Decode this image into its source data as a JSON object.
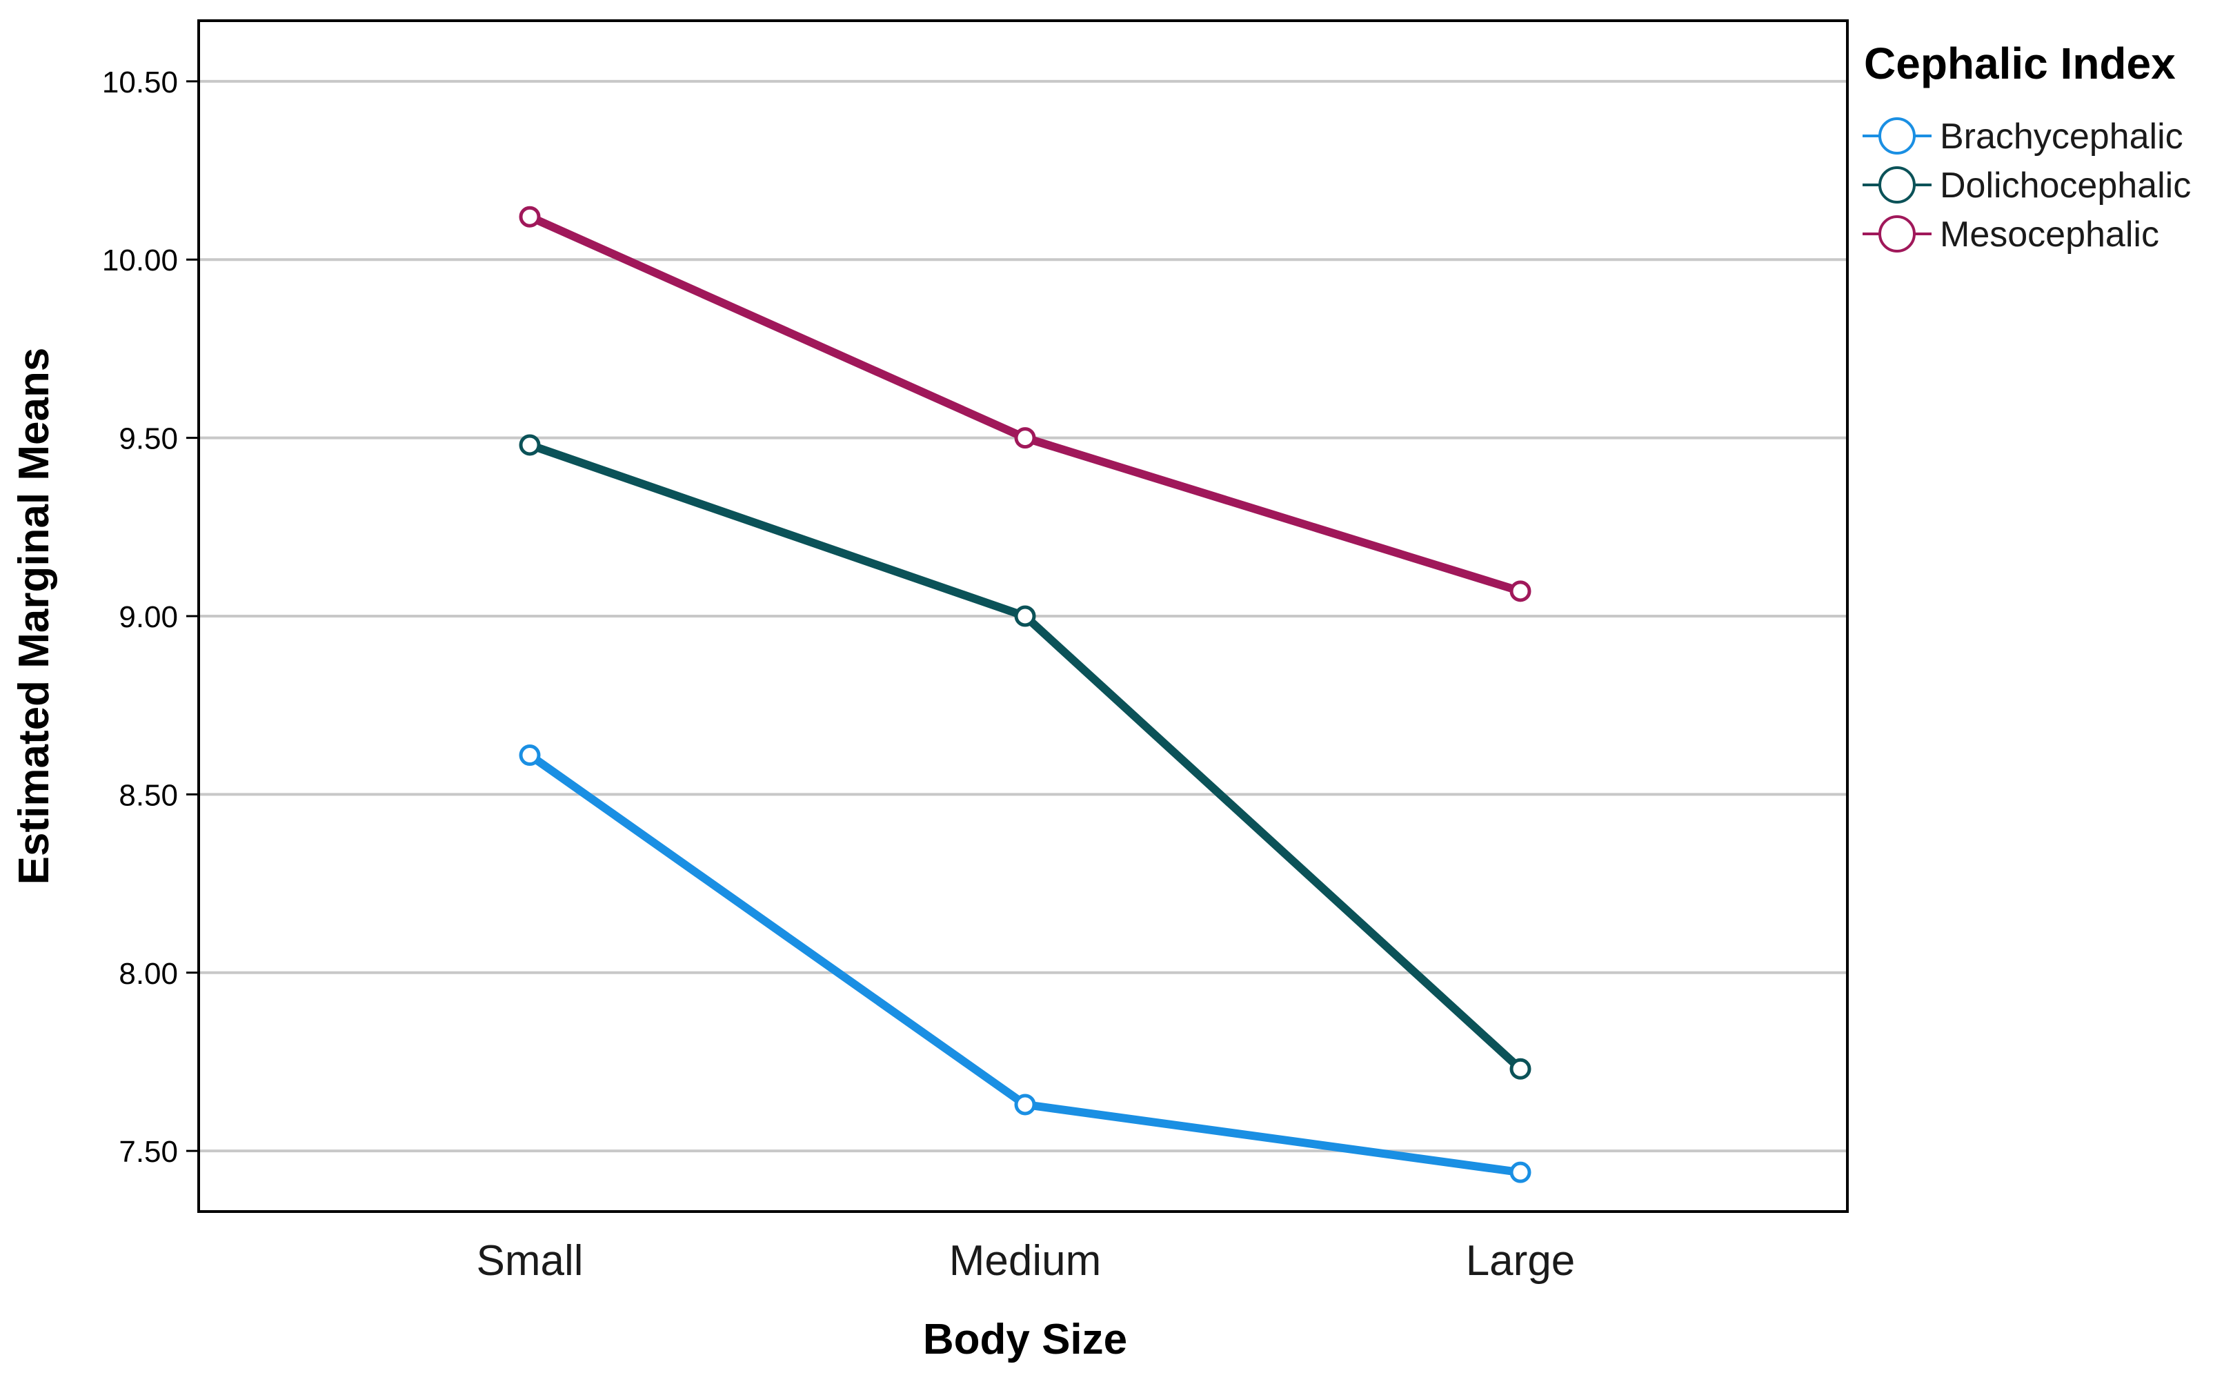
{
  "chart_data": {
    "type": "line",
    "title": "",
    "xlabel": "Body Size",
    "ylabel": "Estimated Marginal Means",
    "categories": [
      "Small",
      "Medium",
      "Large"
    ],
    "ylim": [
      7.33,
      10.67
    ],
    "yticks": [
      "7.50",
      "8.00",
      "8.50",
      "9.00",
      "9.50",
      "10.00",
      "10.50"
    ],
    "grid": true,
    "legend": {
      "title": "Cephalic Index",
      "placement": "right"
    },
    "series": [
      {
        "name": "Brachycephalic",
        "values": [
          8.61,
          7.63,
          7.44
        ],
        "color": "#1a8fe3"
      },
      {
        "name": "Dolichocephalic",
        "values": [
          9.48,
          9.0,
          7.73
        ],
        "color": "#0b5258"
      },
      {
        "name": "Mesocephalic",
        "values": [
          10.12,
          9.5,
          9.07
        ],
        "color": "#a0185a"
      }
    ]
  }
}
